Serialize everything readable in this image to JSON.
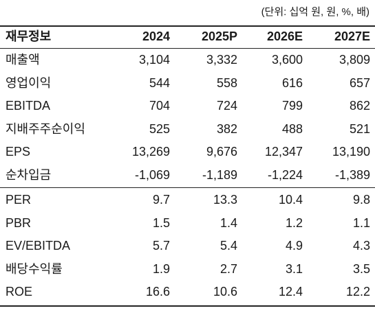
{
  "unit_note": "(단위: 십억 원, 원, %, 배)",
  "table": {
    "header": [
      "재무정보",
      "2024",
      "2025P",
      "2026E",
      "2027E"
    ],
    "sections": [
      {
        "rows": [
          [
            "매출액",
            "3,104",
            "3,332",
            "3,600",
            "3,809"
          ],
          [
            "영업이익",
            "544",
            "558",
            "616",
            "657"
          ],
          [
            "EBITDA",
            "704",
            "724",
            "799",
            "862"
          ],
          [
            "지배주주순이익",
            "525",
            "382",
            "488",
            "521"
          ],
          [
            "EPS",
            "13,269",
            "9,676",
            "12,347",
            "13,190"
          ],
          [
            "순차입금",
            "-1,069",
            "-1,189",
            "-1,224",
            "-1,389"
          ]
        ]
      },
      {
        "rows": [
          [
            "PER",
            "9.7",
            "13.3",
            "10.4",
            "9.8"
          ],
          [
            "PBR",
            "1.5",
            "1.4",
            "1.2",
            "1.1"
          ],
          [
            "EV/EBITDA",
            "5.7",
            "5.4",
            "4.9",
            "4.3"
          ],
          [
            "배당수익률",
            "1.9",
            "2.7",
            "3.1",
            "3.5"
          ],
          [
            "ROE",
            "16.6",
            "10.6",
            "12.4",
            "12.2"
          ]
        ]
      }
    ]
  }
}
